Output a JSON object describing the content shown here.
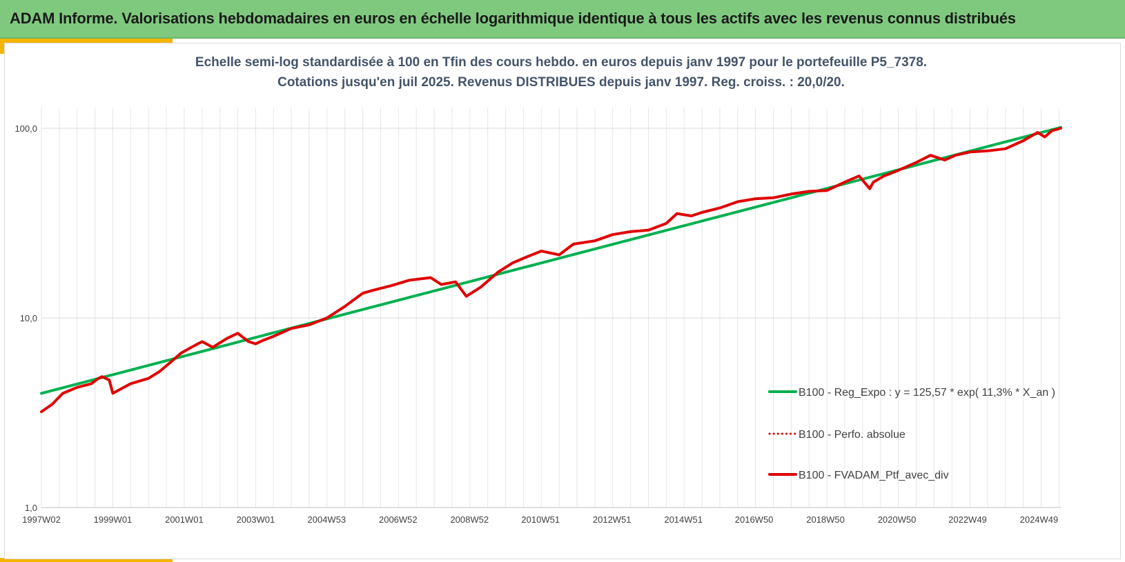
{
  "header": {
    "title": "ADAM Informe. Valorisations hebdomadaires en euros en échelle logarithmique identique à tous les actifs avec les revenus connus distribués",
    "background": "#7fc97f",
    "accent": "#f4b400"
  },
  "chart_data": {
    "type": "line",
    "title_lines": [
      "Echelle semi-log standardisée  à 100 en Tfin des cours hebdo.  en euros depuis janv 1997 pour  le portefeuille P5_7378.",
      "Cotations  jusqu'en juil 2025. Revenus DISTRIBUES depuis janv 1997. Reg. croiss. : 20,0/20."
    ],
    "y_scale": "log",
    "ylim": [
      1,
      100
    ],
    "y_ticks": [
      {
        "value": 100,
        "label": "100,0"
      },
      {
        "value": 10,
        "label": "10,0"
      },
      {
        "value": 1,
        "label": "1,0"
      }
    ],
    "xlim": [
      1997.0,
      2025.55
    ],
    "x_ticks": [
      {
        "value": 1997.0,
        "label": "1997W02"
      },
      {
        "value": 1999.0,
        "label": "1999W01"
      },
      {
        "value": 2001.0,
        "label": "2001W01"
      },
      {
        "value": 2003.0,
        "label": "2003W01"
      },
      {
        "value": 2004.99,
        "label": "2004W53"
      },
      {
        "value": 2006.99,
        "label": "2006W52"
      },
      {
        "value": 2008.99,
        "label": "2008W52"
      },
      {
        "value": 2010.98,
        "label": "2010W51"
      },
      {
        "value": 2012.98,
        "label": "2012W51"
      },
      {
        "value": 2014.98,
        "label": "2014W51"
      },
      {
        "value": 2016.96,
        "label": "2016W50"
      },
      {
        "value": 2018.96,
        "label": "2018W50"
      },
      {
        "value": 2020.96,
        "label": "2020W50"
      },
      {
        "value": 2022.94,
        "label": "2022W49"
      },
      {
        "value": 2024.94,
        "label": "2024W49"
      }
    ],
    "grid": true,
    "legend_position": "bottom-right",
    "series": [
      {
        "name": "B100 - Reg_Expo : y = 125,57 * exp( 11,3% *  X_an )",
        "color": "#00b050",
        "style": "solid",
        "x": [
          1997.0,
          2025.55
        ],
        "y": [
          4.0,
          101.0
        ]
      },
      {
        "name": "B100 - Perfo. absolue",
        "color": "#e00000",
        "style": "dotted",
        "x": [
          1997.0,
          1997.3,
          1997.6,
          1998.0,
          1998.4,
          1998.6,
          1998.7,
          1998.9,
          1999.0,
          1999.5,
          2000.0,
          2000.3,
          2000.6,
          2000.9,
          2001.2,
          2001.5,
          2001.8,
          2002.2,
          2002.5,
          2002.8,
          2003.0,
          2003.2,
          2003.5,
          2004.0,
          2004.5,
          2005.0,
          2005.5,
          2006.0,
          2006.3,
          2006.8,
          2007.3,
          2007.9,
          2008.2,
          2008.6,
          2008.9,
          2009.3,
          2009.8,
          2010.2,
          2010.6,
          2011.0,
          2011.5,
          2011.9,
          2012.5,
          2013.0,
          2013.5,
          2014.0,
          2014.5,
          2014.8,
          2015.2,
          2015.5,
          2016.0,
          2016.5,
          2017.0,
          2017.5,
          2018.0,
          2018.5,
          2019.0,
          2019.5,
          2019.9,
          2020.2,
          2020.3,
          2020.6,
          2021.0,
          2021.5,
          2021.9,
          2022.3,
          2022.6,
          2023.0,
          2023.5,
          2024.0,
          2024.5,
          2024.9,
          2025.1,
          2025.3,
          2025.55
        ],
        "y": [
          3.2,
          3.5,
          4.0,
          4.3,
          4.5,
          4.8,
          4.9,
          4.7,
          4.0,
          4.5,
          4.8,
          5.2,
          5.8,
          6.5,
          7.0,
          7.5,
          7.0,
          7.8,
          8.3,
          7.5,
          7.3,
          7.6,
          8.0,
          8.8,
          9.2,
          10.0,
          11.5,
          13.5,
          14.0,
          14.8,
          15.8,
          16.3,
          15.0,
          15.5,
          13.0,
          14.5,
          17.5,
          19.5,
          21.0,
          22.5,
          21.5,
          24.5,
          25.5,
          27.5,
          28.5,
          29.0,
          31.5,
          35.5,
          34.5,
          36.0,
          38.0,
          41.0,
          42.5,
          43.0,
          45.0,
          46.5,
          47.0,
          52.0,
          56.0,
          48.0,
          52.0,
          56.0,
          60.0,
          66.0,
          72.0,
          68.0,
          72.0,
          75.0,
          76.0,
          78.0,
          86.0,
          95.0,
          90.0,
          97.0,
          100.0
        ]
      },
      {
        "name": "B100 - FVADAM_Ptf_avec_div",
        "color": "#e00000",
        "style": "solid",
        "x": [
          1997.0,
          1997.3,
          1997.6,
          1998.0,
          1998.4,
          1998.6,
          1998.7,
          1998.9,
          1999.0,
          1999.5,
          2000.0,
          2000.3,
          2000.6,
          2000.9,
          2001.2,
          2001.5,
          2001.8,
          2002.2,
          2002.5,
          2002.8,
          2003.0,
          2003.2,
          2003.5,
          2004.0,
          2004.5,
          2005.0,
          2005.5,
          2006.0,
          2006.3,
          2006.8,
          2007.3,
          2007.9,
          2008.2,
          2008.6,
          2008.9,
          2009.3,
          2009.8,
          2010.2,
          2010.6,
          2011.0,
          2011.5,
          2011.9,
          2012.5,
          2013.0,
          2013.5,
          2014.0,
          2014.5,
          2014.8,
          2015.2,
          2015.5,
          2016.0,
          2016.5,
          2017.0,
          2017.5,
          2018.0,
          2018.5,
          2019.0,
          2019.5,
          2019.9,
          2020.2,
          2020.3,
          2020.6,
          2021.0,
          2021.5,
          2021.9,
          2022.3,
          2022.6,
          2023.0,
          2023.5,
          2024.0,
          2024.5,
          2024.9,
          2025.1,
          2025.3,
          2025.55
        ],
        "y": [
          3.2,
          3.5,
          4.0,
          4.3,
          4.5,
          4.8,
          4.9,
          4.7,
          4.0,
          4.5,
          4.8,
          5.2,
          5.8,
          6.5,
          7.0,
          7.5,
          7.0,
          7.8,
          8.3,
          7.5,
          7.3,
          7.6,
          8.0,
          8.8,
          9.2,
          10.0,
          11.5,
          13.5,
          14.0,
          14.8,
          15.8,
          16.3,
          15.0,
          15.5,
          13.0,
          14.5,
          17.5,
          19.5,
          21.0,
          22.5,
          21.5,
          24.5,
          25.5,
          27.5,
          28.5,
          29.0,
          31.5,
          35.5,
          34.5,
          36.0,
          38.0,
          41.0,
          42.5,
          43.0,
          45.0,
          46.5,
          47.0,
          52.0,
          56.0,
          48.0,
          52.0,
          56.0,
          60.0,
          66.0,
          72.0,
          68.0,
          72.0,
          75.0,
          76.0,
          78.0,
          86.0,
          95.0,
          90.0,
          97.0,
          100.0
        ]
      }
    ]
  }
}
